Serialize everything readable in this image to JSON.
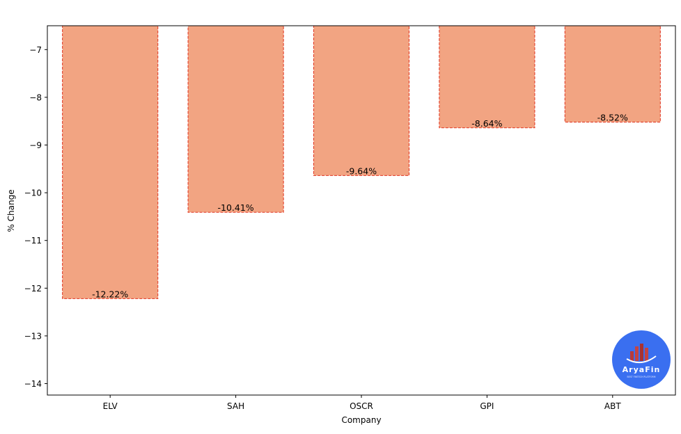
{
  "chart_data": {
    "type": "bar",
    "categories": [
      "ELV",
      "SAH",
      "OSCR",
      "GPI",
      "ABT"
    ],
    "values": [
      -12.22,
      -10.41,
      -9.64,
      -8.64,
      -8.52
    ],
    "data_labels": [
      "-12.22%",
      "-10.41%",
      "-9.64%",
      "-8.64%",
      "-8.52%"
    ],
    "xlabel": "Company",
    "ylabel": "% Change",
    "ylim": [
      -14.24,
      -6.5
    ],
    "yticks": [
      -14,
      -13,
      -12,
      -11,
      -10,
      -9,
      -8,
      -7
    ],
    "ytick_labels": [
      "−14",
      "−13",
      "−12",
      "−11",
      "−10",
      "−9",
      "−8",
      "−7"
    ],
    "grid": false,
    "bar_color": "#f2a482",
    "bar_edge_color": "#e0321e"
  },
  "logo": {
    "text": "AryaFin",
    "tagline": "BEST FINTECH PLATFORM",
    "background": "#3a6ff0"
  }
}
